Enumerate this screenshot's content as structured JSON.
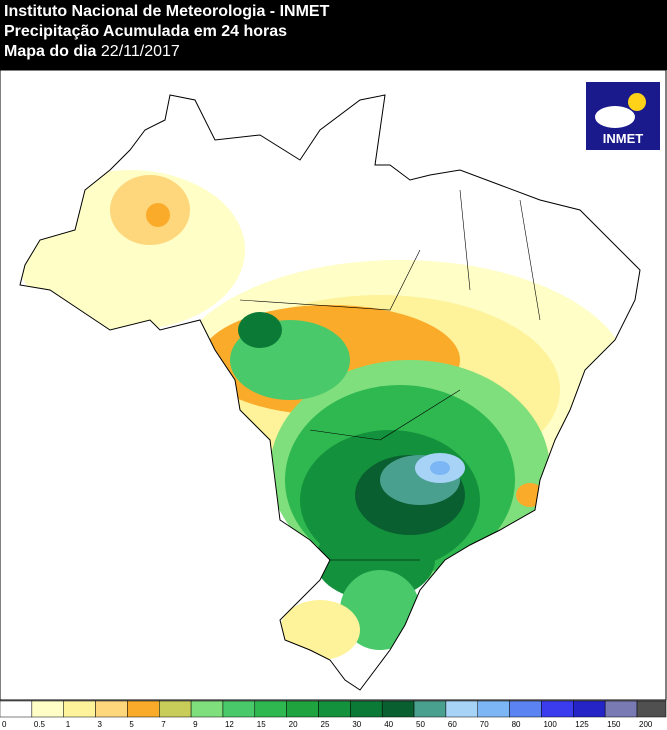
{
  "header": {
    "line1": "Instituto Nacional de Meteorologia - INMET",
    "line2": "Precipitação Acumulada em 24 horas",
    "line3_label": "Mapa do dia",
    "line3_date": "22/11/2017"
  },
  "logo": {
    "text": "INMET"
  },
  "legend": {
    "labels": [
      0,
      0.5,
      1,
      3,
      5,
      7,
      9,
      12,
      15,
      20,
      25,
      30,
      40,
      50,
      60,
      70,
      80,
      100,
      125,
      150,
      200
    ],
    "colors": [
      "#ffffff",
      "#fefec6",
      "#fef29a",
      "#fed77c",
      "#fbab2a",
      "#c8cc58",
      "#7fdf7c",
      "#49c96a",
      "#2fb850",
      "#1fa33e",
      "#13913c",
      "#0b7a36",
      "#0a5f31",
      "#4aa08f",
      "#a7d3f6",
      "#7db6f5",
      "#5b83f1",
      "#3b3cee",
      "#2525c7",
      "#7979b4",
      "#505050"
    ]
  }
}
